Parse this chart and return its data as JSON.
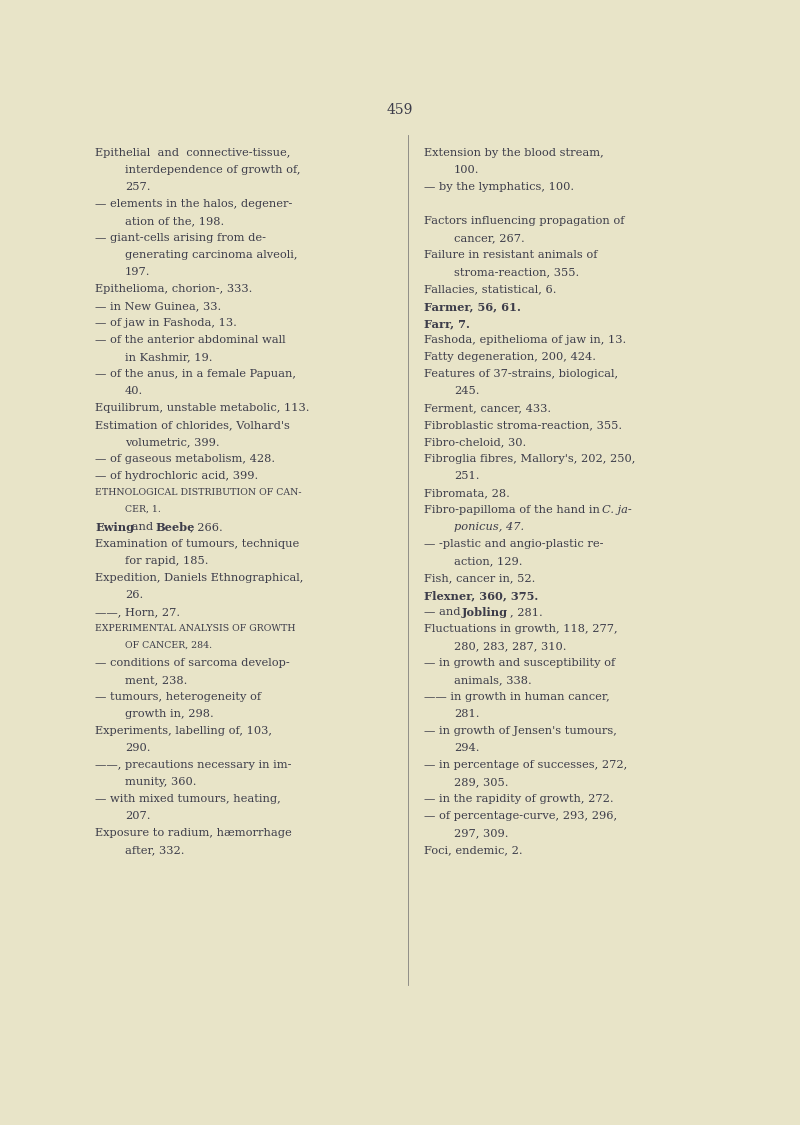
{
  "bg_color": "#e8e4c8",
  "page_number": "459",
  "text_color": "#3d3d4a",
  "font_size": 8.2,
  "left_column": [
    {
      "text": "Epithelial  and  connective-tissue,",
      "indent": 0,
      "style": "normal"
    },
    {
      "text": "interdependence of growth of,",
      "indent": 1,
      "style": "normal"
    },
    {
      "text": "257.",
      "indent": 1,
      "style": "normal"
    },
    {
      "text": "— elements in the halos, degener-",
      "indent": 0,
      "style": "normal"
    },
    {
      "text": "ation of the, 198.",
      "indent": 1,
      "style": "normal"
    },
    {
      "text": "— giant-cells arising from de-",
      "indent": 0,
      "style": "normal"
    },
    {
      "text": "generating carcinoma alveoli,",
      "indent": 1,
      "style": "normal"
    },
    {
      "text": "197.",
      "indent": 1,
      "style": "normal"
    },
    {
      "text": "Epithelioma, chorion-, 333.",
      "indent": 0,
      "style": "normal"
    },
    {
      "text": "— in New Guinea, 33.",
      "indent": 0,
      "style": "normal"
    },
    {
      "text": "— of jaw in Fashoda, 13.",
      "indent": 0,
      "style": "normal"
    },
    {
      "text": "— of the anterior abdominal wall",
      "indent": 0,
      "style": "normal"
    },
    {
      "text": "in Kashmir, 19.",
      "indent": 1,
      "style": "normal"
    },
    {
      "text": "— of the anus, in a female Papuan,",
      "indent": 0,
      "style": "normal"
    },
    {
      "text": "40.",
      "indent": 1,
      "style": "normal"
    },
    {
      "text": "Equilibrum, unstable metabolic, 113.",
      "indent": 0,
      "style": "normal"
    },
    {
      "text": "Estimation of chlorides, Volhard's",
      "indent": 0,
      "style": "normal"
    },
    {
      "text": "volumetric, 399.",
      "indent": 1,
      "style": "normal"
    },
    {
      "text": "— of gaseous metabolism, 428.",
      "indent": 0,
      "style": "normal"
    },
    {
      "text": "— of hydrochloric acid, 399.",
      "indent": 0,
      "style": "normal"
    },
    {
      "text": "Ethnological distribution of can-",
      "indent": 0,
      "style": "smallcaps"
    },
    {
      "text": "cer, 1.",
      "indent": 1,
      "style": "smallcaps"
    },
    {
      "text": "EWING_BEEBE",
      "indent": 0,
      "style": "mixed_bold"
    },
    {
      "text": "Examination of tumours, technique",
      "indent": 0,
      "style": "normal"
    },
    {
      "text": "for rapid, 185.",
      "indent": 1,
      "style": "normal"
    },
    {
      "text": "Expedition, Daniels Ethnographical,",
      "indent": 0,
      "style": "normal"
    },
    {
      "text": "26.",
      "indent": 1,
      "style": "normal"
    },
    {
      "text": "——, Horn, 27.",
      "indent": 0,
      "style": "normal"
    },
    {
      "text": "Experimental analysis of growth",
      "indent": 0,
      "style": "smallcaps"
    },
    {
      "text": "of cancer, 284.",
      "indent": 1,
      "style": "smallcaps"
    },
    {
      "text": "— conditions of sarcoma develop-",
      "indent": 0,
      "style": "normal"
    },
    {
      "text": "ment, 238.",
      "indent": 1,
      "style": "normal"
    },
    {
      "text": "— tumours, heterogeneity of",
      "indent": 0,
      "style": "normal"
    },
    {
      "text": "growth in, 298.",
      "indent": 1,
      "style": "normal"
    },
    {
      "text": "Experiments, labelling of, 103,",
      "indent": 0,
      "style": "normal"
    },
    {
      "text": "290.",
      "indent": 1,
      "style": "normal"
    },
    {
      "text": "——, precautions necessary in im-",
      "indent": 0,
      "style": "normal"
    },
    {
      "text": "munity, 360.",
      "indent": 1,
      "style": "normal"
    },
    {
      "text": "— with mixed tumours, heating,",
      "indent": 0,
      "style": "normal"
    },
    {
      "text": "207.",
      "indent": 1,
      "style": "normal"
    },
    {
      "text": "Exposure to radium, hæmorrhage",
      "indent": 0,
      "style": "normal"
    },
    {
      "text": "after, 332.",
      "indent": 1,
      "style": "normal"
    }
  ],
  "right_column": [
    {
      "text": "Extension by the blood stream,",
      "indent": 0,
      "style": "normal"
    },
    {
      "text": "100.",
      "indent": 1,
      "style": "normal"
    },
    {
      "text": "— by the lymphatics, 100.",
      "indent": 0,
      "style": "normal"
    },
    {
      "text": "",
      "indent": 0,
      "style": "blank"
    },
    {
      "text": "Factors influencing propagation of",
      "indent": 0,
      "style": "normal"
    },
    {
      "text": "cancer, 267.",
      "indent": 1,
      "style": "normal"
    },
    {
      "text": "Failure in resistant animals of",
      "indent": 0,
      "style": "normal"
    },
    {
      "text": "stroma-reaction, 355.",
      "indent": 1,
      "style": "normal"
    },
    {
      "text": "Fallacies, statistical, 6.",
      "indent": 0,
      "style": "normal"
    },
    {
      "text": "Farmer, 56, 61.",
      "indent": 0,
      "style": "bold"
    },
    {
      "text": "Farr, 7.",
      "indent": 0,
      "style": "bold"
    },
    {
      "text": "Fashoda, epithelioma of jaw in, 13.",
      "indent": 0,
      "style": "normal"
    },
    {
      "text": "Fatty degeneration, 200, 424.",
      "indent": 0,
      "style": "normal"
    },
    {
      "text": "Features of 37-strains, biological,",
      "indent": 0,
      "style": "normal"
    },
    {
      "text": "245.",
      "indent": 1,
      "style": "normal"
    },
    {
      "text": "Ferment, cancer, 433.",
      "indent": 0,
      "style": "normal"
    },
    {
      "text": "Fibroblastic stroma-reaction, 355.",
      "indent": 0,
      "style": "normal"
    },
    {
      "text": "Fibro-cheloid, 30.",
      "indent": 0,
      "style": "normal"
    },
    {
      "text": "Fibroglia fibres, Mallory's, 202, 250,",
      "indent": 0,
      "style": "normal"
    },
    {
      "text": "251.",
      "indent": 1,
      "style": "normal"
    },
    {
      "text": "Fibromata, 28.",
      "indent": 0,
      "style": "normal"
    },
    {
      "text": "FIBRO_PAPILLOMA",
      "indent": 0,
      "style": "mixed_italic"
    },
    {
      "text": "ponicus, 47.",
      "indent": 1,
      "style": "italic"
    },
    {
      "text": "— -plastic and angio-plastic re-",
      "indent": 0,
      "style": "normal"
    },
    {
      "text": "action, 129.",
      "indent": 1,
      "style": "normal"
    },
    {
      "text": "Fish, cancer in, 52.",
      "indent": 0,
      "style": "normal"
    },
    {
      "text": "Flexner, 360, 375.",
      "indent": 0,
      "style": "bold"
    },
    {
      "text": "JOBLING_LINE",
      "indent": 0,
      "style": "mixed_bold2"
    },
    {
      "text": "Fluctuations in growth, 118, 277,",
      "indent": 0,
      "style": "normal"
    },
    {
      "text": "280, 283, 287, 310.",
      "indent": 1,
      "style": "normal"
    },
    {
      "text": "— in growth and susceptibility of",
      "indent": 0,
      "style": "normal"
    },
    {
      "text": "animals, 338.",
      "indent": 1,
      "style": "normal"
    },
    {
      "text": "—— in growth in human cancer,",
      "indent": 0,
      "style": "normal"
    },
    {
      "text": "281.",
      "indent": 1,
      "style": "normal"
    },
    {
      "text": "— in growth of Jensen's tumours,",
      "indent": 0,
      "style": "normal"
    },
    {
      "text": "294.",
      "indent": 1,
      "style": "normal"
    },
    {
      "text": "— in percentage of successes, 272,",
      "indent": 0,
      "style": "normal"
    },
    {
      "text": "289, 305.",
      "indent": 1,
      "style": "normal"
    },
    {
      "text": "— in the rapidity of growth, 272.",
      "indent": 0,
      "style": "normal"
    },
    {
      "text": "— of percentage-curve, 293, 296,",
      "indent": 0,
      "style": "normal"
    },
    {
      "text": "297, 309.",
      "indent": 1,
      "style": "normal"
    },
    {
      "text": "Foci, endemic, 2.",
      "indent": 0,
      "style": "normal"
    }
  ]
}
